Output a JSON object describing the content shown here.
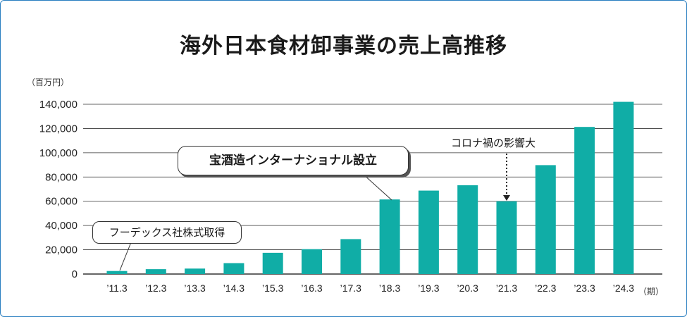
{
  "title": "海外日本食材卸事業の売上高推移",
  "unit_label": "（百万円）",
  "period_label": "（期）",
  "callouts": {
    "takara": "宝酒造インターナショナル設立",
    "foodex": "フーデックス社株式取得",
    "corona": "コロナ禍の影響大"
  },
  "colors": {
    "bar": "#10ada6",
    "grid": "#333333",
    "text": "#1a1a1a"
  },
  "chart_data": {
    "type": "bar",
    "title": "海外日本食材卸事業の売上高推移",
    "ylabel": "（百万円）",
    "xlabel": "（期）",
    "categories": [
      "’11.3",
      "’12.3",
      "’13.3",
      "’14.3",
      "’15.3",
      "’16.3",
      "’17.3",
      "’18.3",
      "’19.3",
      "’20.3",
      "’21.3",
      "’22.3",
      "’23.3",
      "’24.3"
    ],
    "values": [
      2500,
      4000,
      4500,
      9000,
      17500,
      20500,
      28800,
      61500,
      68800,
      73200,
      60000,
      89800,
      121300,
      142000
    ],
    "ylim": [
      0,
      140000
    ],
    "yticks": [
      0,
      20000,
      40000,
      60000,
      80000,
      100000,
      120000,
      140000
    ],
    "ytick_labels": [
      "0",
      "20,000",
      "40,000",
      "60,000",
      "80,000",
      "100,000",
      "120,000",
      "140,000"
    ],
    "grid": true
  }
}
